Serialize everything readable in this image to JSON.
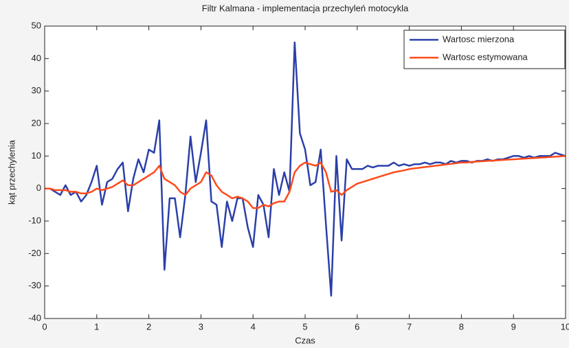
{
  "chart_data": {
    "type": "line",
    "title": "Filtr Kalmana - implementacja przechyleń motocykla",
    "x_label": "Czas",
    "y_label": "kąt przechylenia",
    "x": [
      0,
      0.1,
      0.2,
      0.3,
      0.4,
      0.5,
      0.6,
      0.7,
      0.8,
      0.9,
      1,
      1.1,
      1.2,
      1.3,
      1.4,
      1.5,
      1.6,
      1.7,
      1.8,
      1.9,
      2,
      2.1,
      2.2,
      2.3,
      2.4,
      2.5,
      2.6,
      2.7,
      2.8,
      2.9,
      3,
      3.1,
      3.2,
      3.3,
      3.4,
      3.5,
      3.6,
      3.7,
      3.8,
      3.9,
      4,
      4.1,
      4.2,
      4.3,
      4.4,
      4.5,
      4.6,
      4.7,
      4.8,
      4.9,
      5,
      5.1,
      5.2,
      5.3,
      5.4,
      5.5,
      5.6,
      5.7,
      5.8,
      5.9,
      6,
      6.1,
      6.2,
      6.3,
      6.4,
      6.5,
      6.6,
      6.7,
      6.8,
      6.9,
      7,
      7.1,
      7.2,
      7.3,
      7.4,
      7.5,
      7.6,
      7.7,
      7.8,
      7.9,
      8,
      8.1,
      8.2,
      8.3,
      8.4,
      8.5,
      8.6,
      8.7,
      8.8,
      8.9,
      9,
      9.1,
      9.2,
      9.3,
      9.4,
      9.5,
      9.6,
      9.7,
      9.8,
      9.9,
      10
    ],
    "series": [
      {
        "name": "Wartosc mierzona",
        "color": "#2b3fa8",
        "values": [
          0,
          0,
          -1,
          -2,
          1,
          -2,
          -1,
          -4,
          -2,
          2,
          7,
          -5,
          2,
          3,
          6,
          8,
          -7,
          3,
          9,
          5,
          12,
          11,
          21,
          -25,
          -3,
          -3,
          -15,
          -2,
          16,
          2,
          11,
          21,
          -4,
          -5,
          -18,
          -4,
          -10,
          -3,
          -3,
          -12,
          -18,
          -2,
          -5,
          -15,
          6,
          -2,
          5,
          -1,
          45,
          17,
          12,
          1,
          2,
          12,
          -11,
          -33,
          10,
          -16,
          9,
          6,
          6,
          6,
          7,
          6.5,
          7,
          7,
          7,
          8,
          7,
          7.5,
          7,
          7.5,
          7.5,
          8,
          7.5,
          8,
          8,
          7.5,
          8.5,
          8,
          8.5,
          8.5,
          8,
          8.5,
          8.5,
          9,
          8.5,
          9,
          9,
          9.5,
          10,
          10,
          9.5,
          10,
          9.5,
          10,
          10,
          10,
          11,
          10.5,
          10
        ]
      },
      {
        "name": "Wartosc estymowana",
        "color": "#ff4a1a",
        "values": [
          0,
          0,
          -0.5,
          -0.5,
          -0.5,
          -1,
          -1,
          -1.5,
          -1.5,
          -1,
          0,
          -0.5,
          0,
          0.5,
          1.5,
          2.5,
          1,
          1,
          2,
          3,
          4,
          5,
          7,
          3,
          2,
          1,
          -1,
          -2,
          0,
          1,
          2,
          5,
          4,
          1,
          -1,
          -2,
          -3,
          -2.5,
          -3,
          -4,
          -6,
          -6,
          -5,
          -5.5,
          -4.5,
          -4,
          -4,
          -1,
          5,
          7,
          8,
          7.5,
          7,
          8,
          5,
          -1,
          -0.5,
          -2,
          -0.5,
          0.5,
          1.5,
          2,
          2.5,
          3,
          3.5,
          4,
          4.5,
          5,
          5.3,
          5.6,
          6,
          6.2,
          6.4,
          6.6,
          6.8,
          7,
          7.2,
          7.4,
          7.6,
          7.8,
          8,
          8,
          8.2,
          8.3,
          8.4,
          8.5,
          8.6,
          8.7,
          8.8,
          8.9,
          9,
          9.1,
          9.2,
          9.3,
          9.4,
          9.5,
          9.6,
          9.7,
          9.8,
          9.9,
          10
        ]
      }
    ],
    "xlim": [
      0,
      10
    ],
    "xticks": [
      0,
      1,
      2,
      3,
      4,
      5,
      6,
      7,
      8,
      9,
      10
    ],
    "ylim": [
      -40,
      50
    ],
    "yticks": [
      -40,
      -30,
      -20,
      -10,
      0,
      10,
      20,
      30,
      40,
      50
    ],
    "legend": "upper right"
  }
}
